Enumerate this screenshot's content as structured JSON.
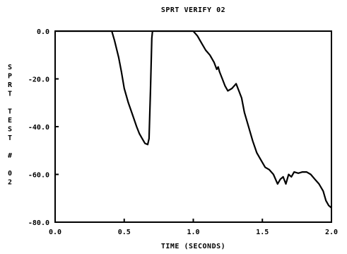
{
  "chart_data": {
    "type": "line",
    "title": "SPRT VERIFY 02",
    "xlabel": "TIME (SECONDS)",
    "ylabel": "SPRT TEST # 02",
    "xlim": [
      0.0,
      2.0
    ],
    "ylim": [
      -80.0,
      0.0
    ],
    "x_ticks": [
      0.0,
      0.5,
      1.0,
      1.5,
      2.0
    ],
    "x_tick_labels": [
      "0.0",
      "0.5",
      "1.0",
      "1.5",
      "2.0"
    ],
    "y_ticks": [
      0.0,
      -20.0,
      -40.0,
      -60.0,
      -80.0
    ],
    "y_tick_labels": [
      "0.0",
      "-20.0",
      "-40.0",
      "-60.0",
      "-80.0"
    ],
    "grid": false,
    "series": [
      {
        "color": "#000000",
        "x": [
          0.0,
          0.41,
          0.43,
          0.46,
          0.48,
          0.5,
          0.53,
          0.56,
          0.59,
          0.61,
          0.63,
          0.65,
          0.67,
          0.68,
          0.69,
          0.7,
          0.705,
          0.71,
          0.99,
          1.0,
          1.03,
          1.06,
          1.09,
          1.12,
          1.15,
          1.17,
          1.18,
          1.19,
          1.21,
          1.23,
          1.25,
          1.28,
          1.31,
          1.33,
          1.35,
          1.37,
          1.4,
          1.43,
          1.46,
          1.49,
          1.52,
          1.55,
          1.58,
          1.61,
          1.63,
          1.65,
          1.67,
          1.69,
          1.71,
          1.73,
          1.76,
          1.79,
          1.82,
          1.85,
          1.88,
          1.91,
          1.94,
          1.96,
          1.98,
          2.0
        ],
        "y": [
          0.0,
          0.0,
          -4.0,
          -11.0,
          -17.0,
          -24.0,
          -30.0,
          -35.0,
          -40.0,
          -43.0,
          -45.0,
          -47.0,
          -47.5,
          -45.0,
          -25.0,
          -3.0,
          0.0,
          0.0,
          0.0,
          0.0,
          -2.0,
          -5.0,
          -8.0,
          -10.0,
          -13.0,
          -16.0,
          -15.0,
          -17.0,
          -20.0,
          -23.0,
          -25.0,
          -24.0,
          -22.0,
          -25.0,
          -28.0,
          -34.0,
          -40.0,
          -46.0,
          -51.0,
          -54.0,
          -57.0,
          -58.0,
          -60.0,
          -64.0,
          -62.0,
          -61.0,
          -64.0,
          -60.0,
          -61.0,
          -59.0,
          -59.5,
          -59.0,
          -59.0,
          -60.0,
          -62.0,
          -64.0,
          -67.0,
          -71.0,
          -73.0,
          -74.0
        ]
      }
    ]
  }
}
